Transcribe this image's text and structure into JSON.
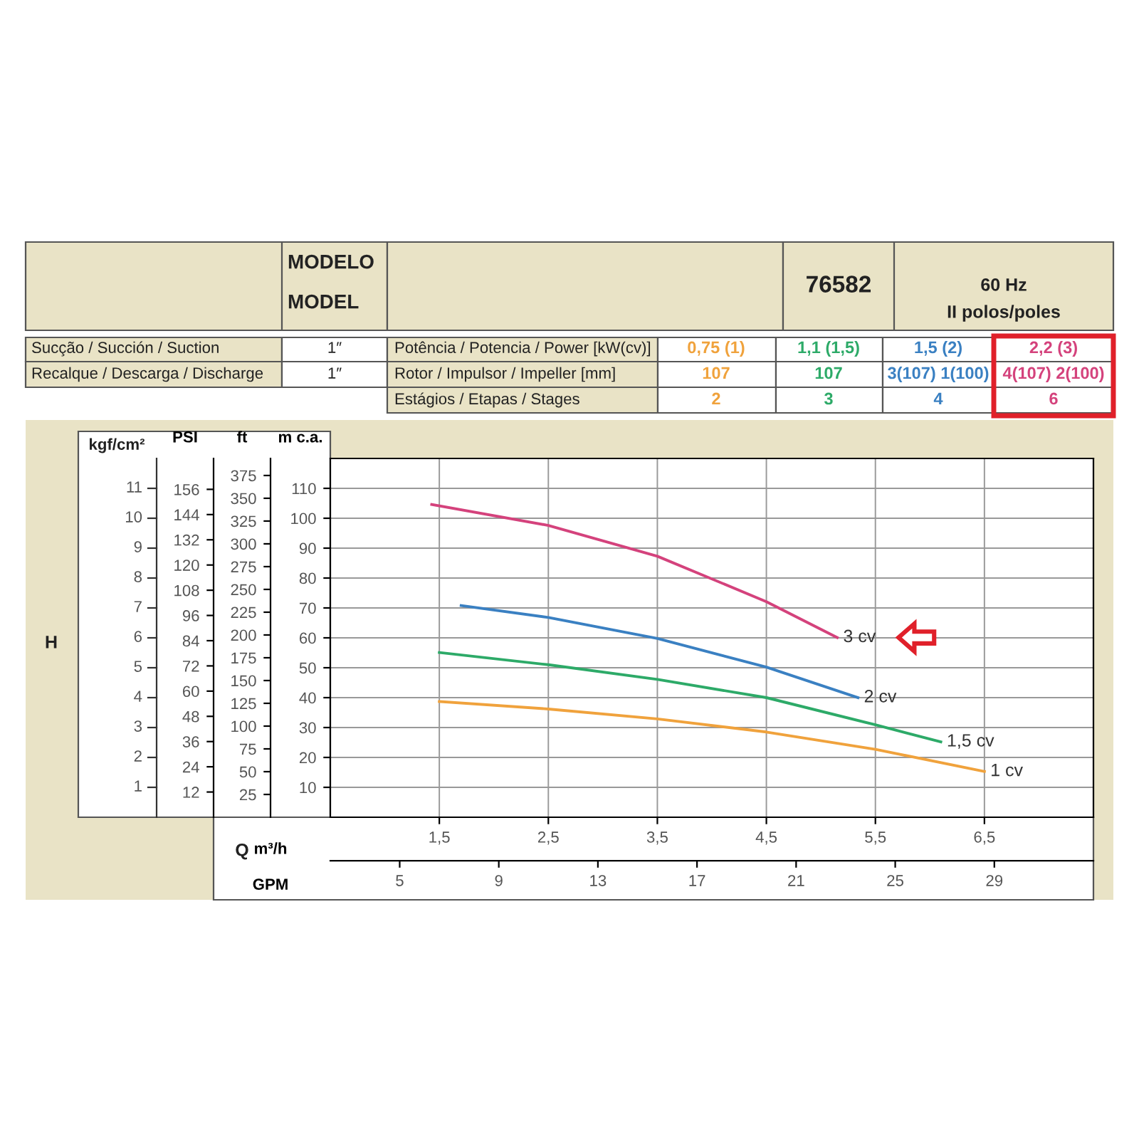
{
  "chart_data": {
    "type": "line",
    "xlabel": "m³/h",
    "x2label": "GPM",
    "ylabel": "m c.a.",
    "y2label": "ft",
    "y3label": "PSI",
    "xlim": [
      0.5,
      7.5
    ],
    "xticks": [
      {
        "value": 1.5,
        "label": "1,5"
      },
      {
        "value": 2.5,
        "label": "2,5"
      },
      {
        "value": 3.5,
        "label": "3,5"
      },
      {
        "value": 4.5,
        "label": "4,5"
      },
      {
        "value": 5.5,
        "label": "5,5"
      },
      {
        "value": 6.5,
        "label": "6,5"
      }
    ],
    "x2lim": [
      2.2,
      33.0
    ],
    "x2ticks": [
      5,
      9,
      13,
      17,
      21,
      25,
      29
    ],
    "ylim": [
      0,
      120
    ],
    "yticks": [
      10,
      20,
      30,
      40,
      50,
      60,
      70,
      80,
      90,
      100,
      110
    ],
    "y2lim": [
      0,
      393.7
    ],
    "y2ticks": [
      25,
      50,
      75,
      100,
      125,
      150,
      175,
      200,
      225,
      250,
      275,
      300,
      325,
      350,
      375
    ],
    "y3lim": [
      0,
      170.7
    ],
    "y3ticks": [
      12,
      24,
      36,
      48,
      60,
      72,
      84,
      96,
      108,
      120,
      132,
      144,
      156
    ],
    "grid": true,
    "legend": false,
    "marker": "none",
    "line_style": "solid",
    "series": [
      {
        "name": "1 cv",
        "color": "#f0a23c",
        "x": [
          1.5,
          2.5,
          3.5,
          4.5,
          5.5,
          6.5
        ],
        "values": [
          38.7,
          36.2,
          32.9,
          28.5,
          22.7,
          15.3
        ]
      },
      {
        "name": "1,5 cv",
        "color": "#2daa68",
        "x": [
          1.5,
          2.5,
          3.5,
          4.5,
          5.5,
          6.1
        ],
        "values": [
          55.1,
          51.0,
          46.1,
          40.0,
          30.9,
          25.2
        ]
      },
      {
        "name": "2 cv",
        "color": "#3a80c2",
        "x": [
          1.7,
          2.5,
          3.5,
          4.5,
          5.34
        ],
        "values": [
          70.8,
          66.8,
          59.8,
          50.2,
          40.0
        ]
      },
      {
        "name": "3 cv",
        "color": "#d4427c",
        "x": [
          1.43,
          2.5,
          3.5,
          4.5,
          5.15
        ],
        "values": [
          104.6,
          97.6,
          87.3,
          72.1,
          60.1
        ]
      }
    ],
    "annotations": [
      "MODELO",
      "MODEL",
      "76582",
      "60 Hz",
      "II polos/poles",
      "Sucção / Succión / Suction",
      "1″",
      "Recalque / Descarga / Discharge",
      "1″",
      "Potência / Potencia / Power [kW(cv)]",
      "Rotor / Impulsor / Impeller [mm]",
      "Estágios / Etapas / Stages",
      "0,75 (1)",
      "1,1 (1,5)",
      "1,5 (2)",
      "2,2 (3)",
      "107",
      "107",
      "3(107) 1(100)",
      "4(107) 2(100)",
      "2",
      "3",
      "4",
      "6",
      "H",
      "Q",
      "kgf/cm²",
      "1",
      "2",
      "3",
      "4",
      "5",
      "6",
      "7",
      "8",
      "9",
      "10",
      "11"
    ]
  }
}
